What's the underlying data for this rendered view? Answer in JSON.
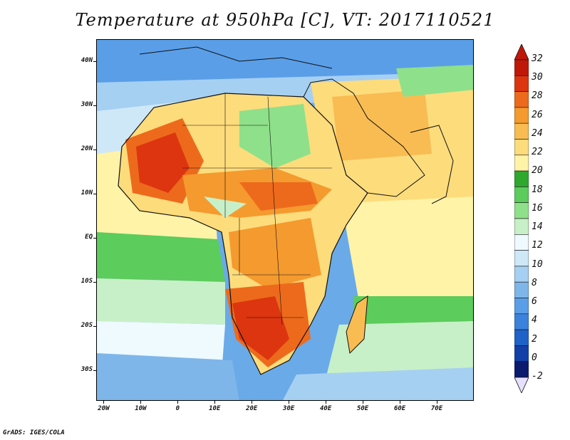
{
  "title": "Temperature at 950hPa [C], VT: 2017110521",
  "credit": "GrADS: IGES/COLA",
  "map": {
    "lat_labels": [
      "40N",
      "30N",
      "20N",
      "10N",
      "EQ",
      "10S",
      "20S",
      "30S"
    ],
    "lat_values": [
      40,
      30,
      20,
      10,
      0,
      -10,
      -20,
      -30
    ],
    "lon_labels": [
      "20W",
      "10W",
      "0",
      "10E",
      "20E",
      "30E",
      "40E",
      "50E",
      "60E",
      "70E"
    ],
    "lon_values": [
      -20,
      -10,
      0,
      10,
      20,
      30,
      40,
      50,
      60,
      70
    ],
    "lat_range": [
      -37,
      45
    ],
    "lon_range": [
      -22,
      80
    ]
  },
  "colorbar": {
    "labels": [
      "32",
      "30",
      "28",
      "26",
      "24",
      "22",
      "20",
      "18",
      "16",
      "14",
      "12",
      "10",
      "8",
      "6",
      "4",
      "2",
      "0",
      "-2"
    ],
    "levels": [
      -2,
      0,
      2,
      4,
      6,
      8,
      10,
      12,
      14,
      16,
      18,
      20,
      22,
      24,
      26,
      28,
      30,
      32
    ],
    "colors": [
      "#0a1a6e",
      "#1240a8",
      "#1f62c8",
      "#3b82dc",
      "#5a9ee8",
      "#7fb6ea",
      "#a6d0f2",
      "#cfe8f8",
      "#eefaff",
      "#c8f0c8",
      "#8fe08a",
      "#5ccc5c",
      "#2ea82e",
      "#fff3a8",
      "#fddc7c",
      "#f9bc52",
      "#f59a2e",
      "#ed6a1c",
      "#dd3510",
      "#c01808"
    ],
    "under_color": "#e6e0ff",
    "over_color": "#c01808"
  }
}
